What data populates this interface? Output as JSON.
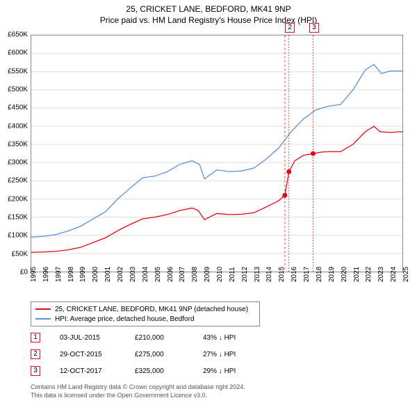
{
  "title": "25, CRICKET LANE, BEDFORD, MK41 9NP",
  "subtitle": "Price paid vs. HM Land Registry's House Price Index (HPI)",
  "chart": {
    "type": "line",
    "background_color": "#ffffff",
    "border_color": "#888888",
    "grid_color": "#dddddd",
    "x_axis": {
      "min": 1995,
      "max": 2025,
      "ticks": [
        1995,
        1996,
        1997,
        1998,
        1999,
        2000,
        2001,
        2002,
        2003,
        2004,
        2005,
        2006,
        2007,
        2008,
        2009,
        2010,
        2011,
        2012,
        2013,
        2014,
        2015,
        2016,
        2017,
        2018,
        2019,
        2020,
        2021,
        2022,
        2023,
        2024,
        2025
      ],
      "rotation_deg": -90,
      "fontsize": 10
    },
    "y_axis": {
      "min": 0,
      "max": 650000,
      "ticks": [
        0,
        50000,
        100000,
        150000,
        200000,
        250000,
        300000,
        350000,
        400000,
        450000,
        500000,
        550000,
        600000,
        650000
      ],
      "tick_labels": [
        "£0",
        "£50K",
        "£100K",
        "£150K",
        "£200K",
        "£250K",
        "£300K",
        "£350K",
        "£400K",
        "£450K",
        "£500K",
        "£550K",
        "£600K",
        "£650K"
      ],
      "fontsize": 10
    },
    "series": [
      {
        "id": "property",
        "label": "25, CRICKET LANE, BEDFORD, MK41 9NP (detached house)",
        "color": "#e30613",
        "line_width": 1.3,
        "data": [
          [
            1995,
            53000
          ],
          [
            1996,
            54000
          ],
          [
            1997,
            56000
          ],
          [
            1998,
            60000
          ],
          [
            1999,
            67000
          ],
          [
            2000,
            80000
          ],
          [
            2001,
            93000
          ],
          [
            2002,
            113000
          ],
          [
            2003,
            130000
          ],
          [
            2004,
            145000
          ],
          [
            2005,
            150000
          ],
          [
            2006,
            157000
          ],
          [
            2007,
            168000
          ],
          [
            2008,
            175000
          ],
          [
            2008.5,
            168000
          ],
          [
            2009,
            143000
          ],
          [
            2010,
            160000
          ],
          [
            2011,
            157000
          ],
          [
            2012,
            158000
          ],
          [
            2013,
            162000
          ],
          [
            2014,
            178000
          ],
          [
            2015,
            195000
          ],
          [
            2015.5,
            210000
          ],
          [
            2015.83,
            275000
          ],
          [
            2016.3,
            305000
          ],
          [
            2017,
            320000
          ],
          [
            2017.78,
            325000
          ],
          [
            2018.5,
            329000
          ],
          [
            2019,
            330000
          ],
          [
            2020,
            330000
          ],
          [
            2021,
            350000
          ],
          [
            2022,
            385000
          ],
          [
            2022.7,
            400000
          ],
          [
            2023.2,
            385000
          ],
          [
            2024,
            383000
          ],
          [
            2025,
            385000
          ]
        ]
      },
      {
        "id": "hpi",
        "label": "HPI: Average price, detached house, Bedford",
        "color": "#5b8fd6",
        "line_width": 1.3,
        "data": [
          [
            1995,
            95000
          ],
          [
            1996,
            97000
          ],
          [
            1997,
            102000
          ],
          [
            1998,
            112000
          ],
          [
            1999,
            125000
          ],
          [
            2000,
            145000
          ],
          [
            2001,
            165000
          ],
          [
            2002,
            200000
          ],
          [
            2003,
            230000
          ],
          [
            2004,
            258000
          ],
          [
            2005,
            263000
          ],
          [
            2006,
            275000
          ],
          [
            2007,
            295000
          ],
          [
            2008,
            305000
          ],
          [
            2008.6,
            295000
          ],
          [
            2009,
            255000
          ],
          [
            2010,
            280000
          ],
          [
            2011,
            275000
          ],
          [
            2012,
            277000
          ],
          [
            2013,
            285000
          ],
          [
            2014,
            310000
          ],
          [
            2015,
            340000
          ],
          [
            2016,
            385000
          ],
          [
            2017,
            420000
          ],
          [
            2018,
            445000
          ],
          [
            2019,
            455000
          ],
          [
            2020,
            460000
          ],
          [
            2021,
            500000
          ],
          [
            2022,
            555000
          ],
          [
            2022.7,
            570000
          ],
          [
            2023.3,
            545000
          ],
          [
            2024,
            552000
          ],
          [
            2025,
            552000
          ]
        ]
      }
    ],
    "transaction_points": [
      {
        "n": 1,
        "x": 2015.5,
        "y": 210000,
        "color": "#e30613"
      },
      {
        "n": 2,
        "x": 2015.83,
        "y": 275000,
        "color": "#e30613"
      },
      {
        "n": 3,
        "x": 2017.78,
        "y": 325000,
        "color": "#e30613"
      }
    ],
    "marker_radius": 3.5,
    "vlines": [
      {
        "x": 2015.5,
        "color": "#e30613",
        "dash": "3,3"
      },
      {
        "x": 2015.83,
        "color": "#e30613",
        "dash": "2,2"
      },
      {
        "x": 2017.78,
        "color": "#e30613",
        "dash": "2,2"
      }
    ],
    "top_markers": [
      {
        "n": 2,
        "x": 2015.83,
        "color": "#e30613"
      },
      {
        "n": 3,
        "x": 2017.78,
        "color": "#e30613"
      }
    ]
  },
  "legend": {
    "border_color": "#888888",
    "fontsize": 10,
    "items": [
      {
        "color": "#e30613",
        "label": "25, CRICKET LANE, BEDFORD, MK41 9NP (detached house)"
      },
      {
        "color": "#5b8fd6",
        "label": "HPI: Average price, detached house, Bedford"
      }
    ]
  },
  "transactions": {
    "fontsize": 10,
    "marker_border": "#e30613",
    "rows": [
      {
        "n": "1",
        "date": "03-JUL-2015",
        "price": "£210,000",
        "diff": "43% ↓ HPI"
      },
      {
        "n": "2",
        "date": "29-OCT-2015",
        "price": "£275,000",
        "diff": "27% ↓ HPI"
      },
      {
        "n": "3",
        "date": "12-OCT-2017",
        "price": "£325,000",
        "diff": "29% ↓ HPI"
      }
    ]
  },
  "footer": {
    "line1": "Contains HM Land Registry data © Crown copyright and database right 2024.",
    "line2": "This data is licensed under the Open Government Licence v3.0.",
    "color": "#555555",
    "fontsize": 9
  }
}
